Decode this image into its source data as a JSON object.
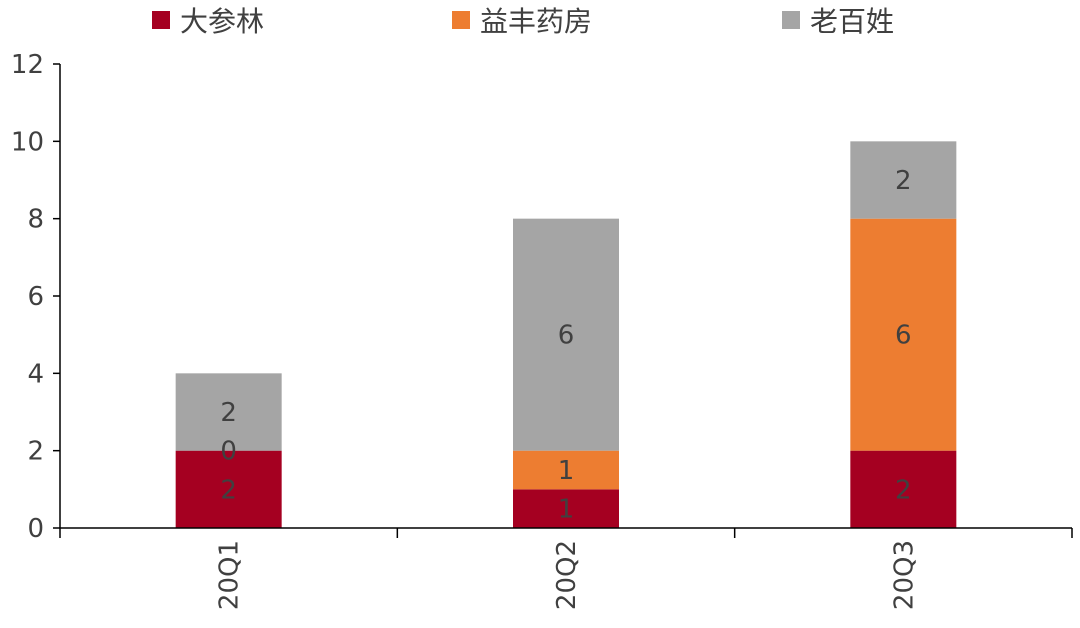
{
  "chart_data": {
    "type": "bar",
    "stacked": true,
    "categories": [
      "20Q1",
      "20Q2",
      "20Q3"
    ],
    "series": [
      {
        "name": "大参林",
        "color": "#a50021",
        "values": [
          2,
          1,
          2
        ]
      },
      {
        "name": "益丰药房",
        "color": "#ed7d31",
        "values": [
          0,
          1,
          6
        ]
      },
      {
        "name": "老百姓",
        "color": "#a5a5a5",
        "values": [
          2,
          6,
          2
        ]
      }
    ],
    "ylim": [
      0,
      12
    ],
    "yticks": [
      0,
      2,
      4,
      6,
      8,
      10,
      12
    ],
    "legend_position": "top",
    "category_label_rotation": -90,
    "grid": false
  }
}
